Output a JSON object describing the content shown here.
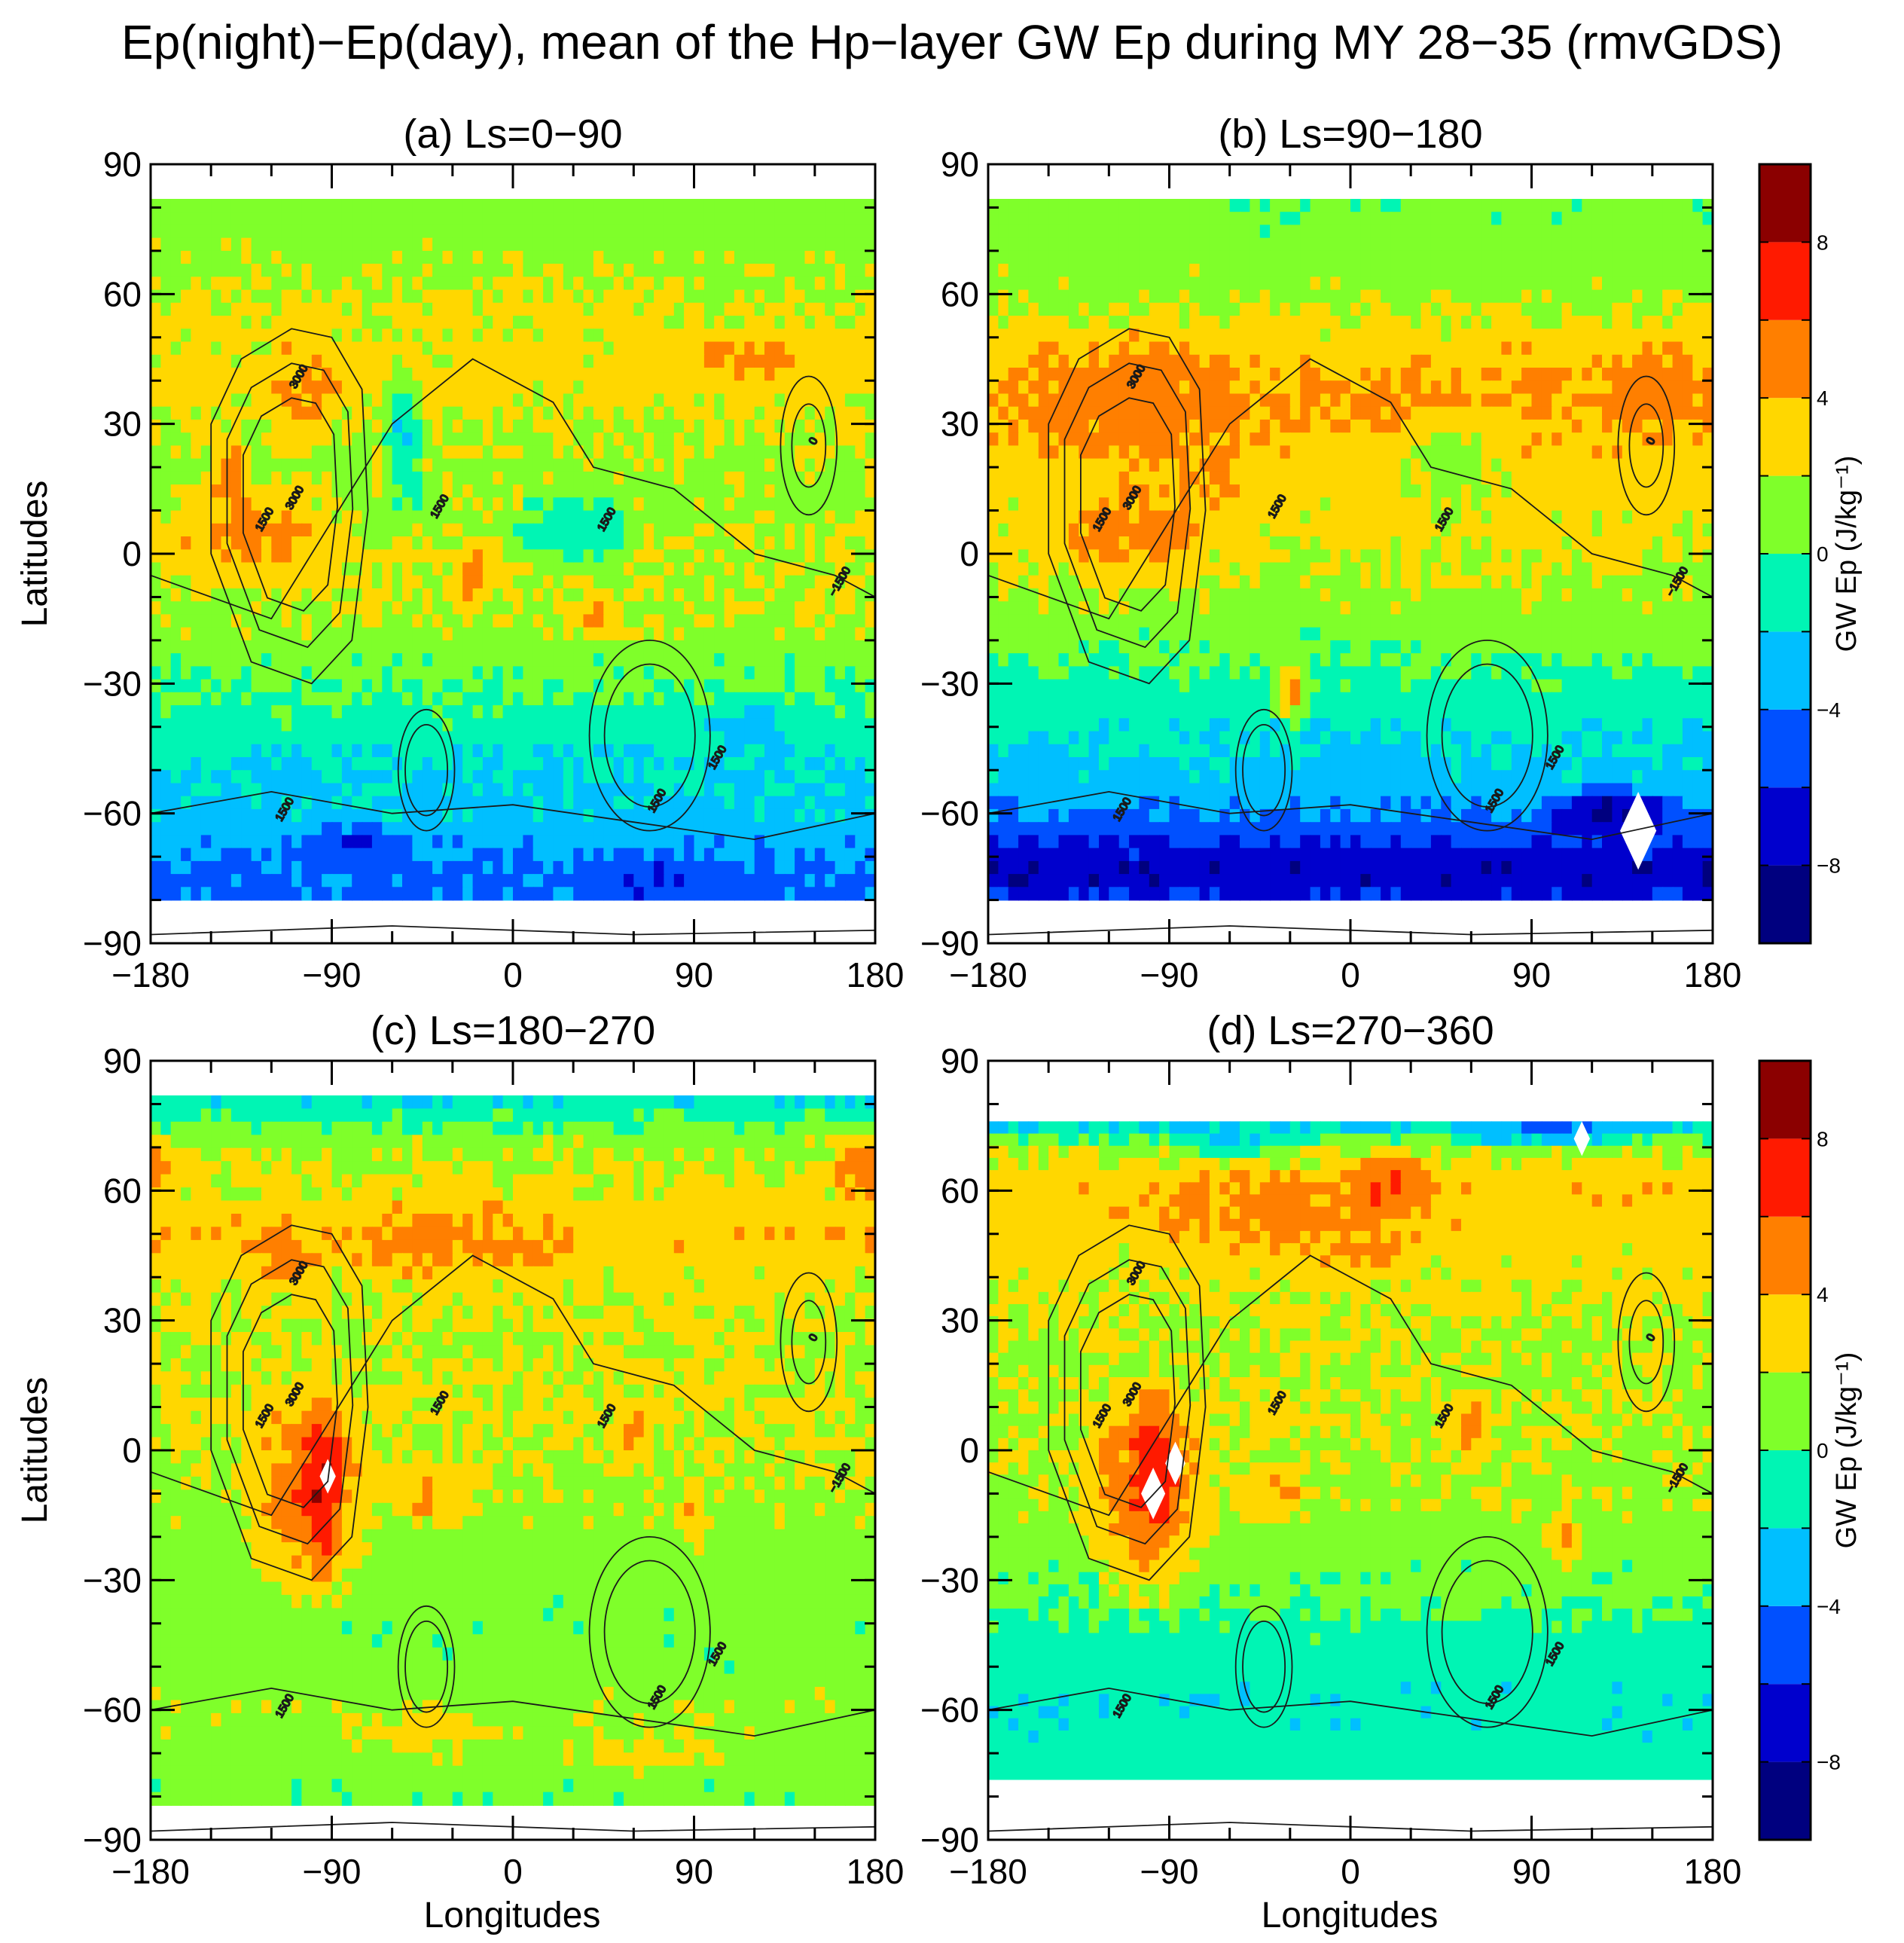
{
  "title": "Ep(night)−Ep(day), mean of the Hp−layer GW Ep during MY 28−35 (rmvGDS)",
  "chart_data": {
    "type": "heatmap",
    "variable": "GW Ep",
    "xlabel": "Longitudes",
    "ylabel": "Latitudes",
    "xlim": [
      -180,
      180
    ],
    "ylim": [
      -90,
      90
    ],
    "xticks": [
      -180,
      -90,
      0,
      90,
      180
    ],
    "xtick_labels": [
      "−180",
      "−90",
      "0",
      "90",
      "180"
    ],
    "yticks": [
      90,
      60,
      30,
      0,
      -30,
      -60,
      -90
    ],
    "ytick_labels": [
      "90",
      "60",
      "30",
      "0",
      "−30",
      "−60",
      "−90"
    ],
    "colorbar": {
      "label": "GW Ep (J/kg⁻¹)",
      "levels": [
        -10,
        -8,
        -6,
        -4,
        -2,
        0,
        2,
        4,
        6,
        8,
        10
      ],
      "tick_values": [
        8,
        4,
        0,
        -4,
        -8
      ],
      "tick_labels": [
        "8",
        "4",
        "0",
        "−4",
        "−8"
      ],
      "colors": [
        "#00007f",
        "#0000cd",
        "#0050ff",
        "#00bfff",
        "#00f5b4",
        "#7fff2a",
        "#ffd700",
        "#ff7f00",
        "#ff1a00",
        "#8b0000"
      ]
    },
    "contour_labels": [
      "0",
      "1500",
      "−1500",
      "3000"
    ],
    "panels": [
      {
        "id": "a",
        "title": "(a) Ls=0−90",
        "lat_range": [
          -80,
          82
        ],
        "bands": [
          [
            90,
            1.0
          ],
          [
            75,
            1.0
          ],
          [
            55,
            2.4
          ],
          [
            40,
            2.9
          ],
          [
            25,
            1.7
          ],
          [
            10,
            1.3
          ],
          [
            0,
            2.2
          ],
          [
            -15,
            1.6
          ],
          [
            -25,
            0.6
          ],
          [
            -38,
            -0.6
          ],
          [
            -50,
            -2.0
          ],
          [
            -62,
            -2.7
          ],
          [
            -72,
            -4.2
          ],
          [
            -80,
            -4.5
          ],
          [
            -90,
            -4.5
          ]
        ],
        "blobs": [
          {
            "lon": -130,
            "lat": 5,
            "rx": 55,
            "ry": 14,
            "v": 4.6
          },
          {
            "lon": -105,
            "lat": 38,
            "rx": 22,
            "ry": 14,
            "v": 4.6
          },
          {
            "lon": -140,
            "lat": 18,
            "rx": 12,
            "ry": 10,
            "v": 5.2
          },
          {
            "lon": -20,
            "lat": -5,
            "rx": 10,
            "ry": 10,
            "v": 5.0
          },
          {
            "lon": 120,
            "lat": 45,
            "rx": 45,
            "ry": 8,
            "v": 4.3
          },
          {
            "lon": 40,
            "lat": -15,
            "rx": 18,
            "ry": 6,
            "v": 4.2
          },
          {
            "lon": -60,
            "lat": 20,
            "rx": 12,
            "ry": 8,
            "v": 4.2
          },
          {
            "lon": -55,
            "lat": 25,
            "rx": 12,
            "ry": 20,
            "v": -2.2
          },
          {
            "lon": 30,
            "lat": 5,
            "rx": 35,
            "ry": 10,
            "v": -1.8
          },
          {
            "lon": -80,
            "lat": -68,
            "rx": 35,
            "ry": 6,
            "v": -6.0
          },
          {
            "lon": 70,
            "lat": -75,
            "rx": 50,
            "ry": 6,
            "v": -6.0
          },
          {
            "lon": 120,
            "lat": -40,
            "rx": 25,
            "ry": 8,
            "v": -3.0
          }
        ],
        "holes": []
      },
      {
        "id": "b",
        "title": "(b) Ls=90−180",
        "lat_range": [
          -80,
          82
        ],
        "bands": [
          [
            90,
            0.5
          ],
          [
            75,
            0.8
          ],
          [
            60,
            1.4
          ],
          [
            48,
            3.2
          ],
          [
            35,
            4.3
          ],
          [
            20,
            3.0
          ],
          [
            5,
            2.6
          ],
          [
            -10,
            1.5
          ],
          [
            -22,
            0.4
          ],
          [
            -35,
            -1.0
          ],
          [
            -50,
            -2.5
          ],
          [
            -60,
            -4.0
          ],
          [
            -68,
            -6.5
          ],
          [
            -74,
            -7.8
          ],
          [
            -82,
            -5.5
          ],
          [
            -90,
            -5.5
          ]
        ],
        "blobs": [
          {
            "lon": -110,
            "lat": 35,
            "rx": 60,
            "ry": 18,
            "v": 5.0
          },
          {
            "lon": -100,
            "lat": 5,
            "rx": 35,
            "ry": 14,
            "v": 5.0
          },
          {
            "lon": 150,
            "lat": 38,
            "rx": 30,
            "ry": 12,
            "v": 5.2
          },
          {
            "lon": -30,
            "lat": -32,
            "rx": 10,
            "ry": 8,
            "v": 4.6
          },
          {
            "lon": -70,
            "lat": 15,
            "rx": 15,
            "ry": 12,
            "v": 4.5
          },
          {
            "lon": 50,
            "lat": 20,
            "rx": 30,
            "ry": 15,
            "v": 1.0
          },
          {
            "lon": 130,
            "lat": -60,
            "rx": 40,
            "ry": 6,
            "v": -8.5
          },
          {
            "lon": -120,
            "lat": 5,
            "rx": 25,
            "ry": 15,
            "v": 4.7
          },
          {
            "lon": 0,
            "lat": -50,
            "rx": 40,
            "ry": 8,
            "v": -3.0
          }
        ],
        "holes": [
          {
            "lon": 143,
            "lat": -64,
            "r": 9
          }
        ]
      },
      {
        "id": "c",
        "title": "(c) Ls=180−270",
        "lat_range": [
          -82,
          82
        ],
        "bands": [
          [
            90,
            -2.5
          ],
          [
            80,
            -1.4
          ],
          [
            70,
            1.6
          ],
          [
            60,
            2.5
          ],
          [
            50,
            3.6
          ],
          [
            40,
            2.6
          ],
          [
            25,
            1.9
          ],
          [
            10,
            2.3
          ],
          [
            -5,
            1.8
          ],
          [
            -20,
            1.2
          ],
          [
            -35,
            0.8
          ],
          [
            -50,
            0.8
          ],
          [
            -60,
            1.5
          ],
          [
            -70,
            1.0
          ],
          [
            -82,
            0.6
          ],
          [
            -90,
            0.6
          ]
        ],
        "blobs": [
          {
            "lon": -100,
            "lat": -10,
            "rx": 35,
            "ry": 28,
            "v": 5.6
          },
          {
            "lon": -95,
            "lat": -8,
            "rx": 12,
            "ry": 22,
            "v": 8.0
          },
          {
            "lon": -30,
            "lat": 48,
            "rx": 65,
            "ry": 10,
            "v": 4.6
          },
          {
            "lon": -110,
            "lat": 45,
            "rx": 20,
            "ry": 10,
            "v": 4.8
          },
          {
            "lon": 175,
            "lat": 65,
            "rx": 20,
            "ry": 10,
            "v": 5.5
          },
          {
            "lon": -40,
            "lat": -10,
            "rx": 30,
            "ry": 8,
            "v": 4.4
          },
          {
            "lon": 60,
            "lat": 5,
            "rx": 12,
            "ry": 8,
            "v": 4.5
          },
          {
            "lon": 90,
            "lat": -15,
            "rx": 8,
            "ry": 10,
            "v": 4.6
          },
          {
            "lon": -45,
            "lat": -65,
            "rx": 40,
            "ry": 8,
            "v": 3.0
          },
          {
            "lon": 60,
            "lat": -70,
            "rx": 50,
            "ry": 6,
            "v": 3.0
          }
        ],
        "holes": [
          {
            "lon": -92,
            "lat": -6,
            "r": 4
          }
        ]
      },
      {
        "id": "d",
        "title": "(d) Ls=270−360",
        "lat_range": [
          -76,
          76
        ],
        "bands": [
          [
            90,
            -3.0
          ],
          [
            76,
            -3.0
          ],
          [
            70,
            1.5
          ],
          [
            62,
            3.4
          ],
          [
            52,
            3.0
          ],
          [
            40,
            2.5
          ],
          [
            25,
            1.7
          ],
          [
            10,
            2.0
          ],
          [
            -5,
            1.8
          ],
          [
            -20,
            1.0
          ],
          [
            -35,
            0.4
          ],
          [
            -45,
            -1.0
          ],
          [
            -55,
            -1.3
          ],
          [
            -65,
            -1.3
          ],
          [
            -76,
            -0.8
          ],
          [
            -90,
            -0.8
          ]
        ],
        "blobs": [
          {
            "lon": -30,
            "lat": 55,
            "rx": 90,
            "ry": 10,
            "v": 5.0
          },
          {
            "lon": 20,
            "lat": 62,
            "rx": 25,
            "ry": 8,
            "v": 6.3
          },
          {
            "lon": -100,
            "lat": -10,
            "rx": 35,
            "ry": 28,
            "v": 5.6
          },
          {
            "lon": -98,
            "lat": -5,
            "rx": 14,
            "ry": 20,
            "v": 7.0
          },
          {
            "lon": 100,
            "lat": 74,
            "rx": 50,
            "ry": 4,
            "v": -4.5
          },
          {
            "lon": -60,
            "lat": 72,
            "rx": 40,
            "ry": 4,
            "v": -2.5
          },
          {
            "lon": 60,
            "lat": 5,
            "rx": 15,
            "ry": 10,
            "v": 4.3
          },
          {
            "lon": 105,
            "lat": -20,
            "rx": 10,
            "ry": 8,
            "v": 4.8
          },
          {
            "lon": -40,
            "lat": -10,
            "rx": 25,
            "ry": 8,
            "v": 4.2
          },
          {
            "lon": 0,
            "lat": 45,
            "rx": 40,
            "ry": 8,
            "v": 4.0
          }
        ],
        "holes": [
          {
            "lon": -98,
            "lat": -10,
            "r": 6
          },
          {
            "lon": -87,
            "lat": -3,
            "r": 5
          },
          {
            "lon": 115,
            "lat": 72,
            "r": 4
          }
        ]
      }
    ]
  }
}
